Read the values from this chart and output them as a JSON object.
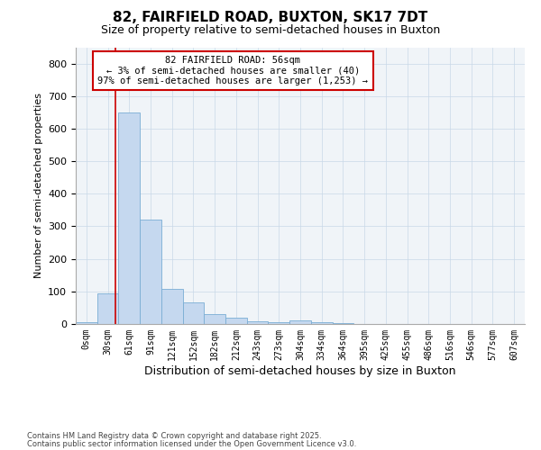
{
  "title1": "82, FAIRFIELD ROAD, BUXTON, SK17 7DT",
  "title2": "Size of property relative to semi-detached houses in Buxton",
  "xlabel": "Distribution of semi-detached houses by size in Buxton",
  "ylabel": "Number of semi-detached properties",
  "bin_labels": [
    "0sqm",
    "30sqm",
    "61sqm",
    "91sqm",
    "121sqm",
    "152sqm",
    "182sqm",
    "212sqm",
    "243sqm",
    "273sqm",
    "304sqm",
    "334sqm",
    "364sqm",
    "395sqm",
    "425sqm",
    "455sqm",
    "486sqm",
    "516sqm",
    "546sqm",
    "577sqm",
    "607sqm"
  ],
  "bar_heights": [
    5,
    93,
    650,
    320,
    108,
    65,
    30,
    18,
    8,
    5,
    10,
    5,
    3,
    1,
    1,
    1,
    1,
    0,
    0,
    0,
    0
  ],
  "bar_color": "#c5d8ef",
  "bar_edge_color": "#7aadd4",
  "red_line_x": 1.87,
  "annotation_title": "82 FAIRFIELD ROAD: 56sqm",
  "annotation_line1": "← 3% of semi-detached houses are smaller (40)",
  "annotation_line2": "97% of semi-detached houses are larger (1,253) →",
  "annotation_box_color": "#cc0000",
  "ylim": [
    0,
    850
  ],
  "yticks": [
    0,
    100,
    200,
    300,
    400,
    500,
    600,
    700,
    800
  ],
  "footnote1": "Contains HM Land Registry data © Crown copyright and database right 2025.",
  "footnote2": "Contains public sector information licensed under the Open Government Licence v3.0.",
  "bg_color": "#ffffff",
  "plot_bg_color": "#f0f4f8",
  "grid_color": "#c8d8e8",
  "title_fontsize": 11,
  "subtitle_fontsize": 9
}
